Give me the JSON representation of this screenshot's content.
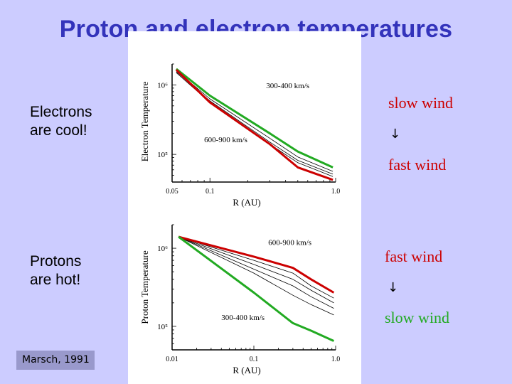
{
  "slide": {
    "title": "Proton and electron temperatures",
    "electrons_text": [
      "Electrons",
      "are cool!"
    ],
    "protons_text": [
      "Protons",
      "are hot!"
    ],
    "upper_right": {
      "top": "slow wind",
      "arrow": "↓",
      "bottom": "fast wind"
    },
    "lower_right": {
      "top": "fast wind",
      "arrow": "↓",
      "bottom": "slow wind"
    },
    "citation": "Marsch, 1991"
  },
  "colors": {
    "background": "#ccccff",
    "title": "#3333bb",
    "red": "#cc0000",
    "green": "#22aa22"
  },
  "chart_data": [
    {
      "type": "line",
      "title": "",
      "xlabel": "R (AU)",
      "ylabel": "Electron Temperature",
      "xscale": "log",
      "yscale": "log",
      "xlim": [
        0.05,
        1.0
      ],
      "ylim": [
        40000,
        2000000
      ],
      "xticks": [
        {
          "v": 0.05,
          "label": "0.05"
        },
        {
          "v": 0.1,
          "label": "0.1"
        },
        {
          "v": 1.0,
          "label": "1.0"
        }
      ],
      "yticks": [
        {
          "v": 1000000,
          "label": "10⁶"
        },
        {
          "v": 100000,
          "label": "10⁵"
        }
      ],
      "annotations": [
        {
          "text": "300-400 km/s",
          "x": 0.28,
          "y": 900000
        },
        {
          "text": "600-900 km/s",
          "x": 0.09,
          "y": 150000
        }
      ],
      "series": [
        {
          "name": "300-400 km/s",
          "color": "#22aa22",
          "width": 3,
          "x": [
            0.054,
            0.1,
            0.3,
            0.5,
            0.95
          ],
          "y": [
            1700000,
            700000,
            200000,
            110000,
            65000
          ]
        },
        {
          "name": "intermediate 1",
          "color": "#000000",
          "width": 0.8,
          "x": [
            0.054,
            0.1,
            0.3,
            0.5,
            0.95
          ],
          "y": [
            1600000,
            630000,
            170000,
            92000,
            57000
          ]
        },
        {
          "name": "intermediate 2",
          "color": "#000000",
          "width": 0.8,
          "x": [
            0.054,
            0.1,
            0.3,
            0.5,
            0.95
          ],
          "y": [
            1550000,
            590000,
            150000,
            82000,
            52000
          ]
        },
        {
          "name": "intermediate 3",
          "color": "#000000",
          "width": 0.8,
          "x": [
            0.054,
            0.1,
            0.3,
            0.5,
            0.95
          ],
          "y": [
            1500000,
            560000,
            140000,
            76000,
            48000
          ]
        },
        {
          "name": "600-900 km/s",
          "color": "#cc0000",
          "width": 3,
          "x": [
            0.054,
            0.1,
            0.3,
            0.5,
            0.95
          ],
          "y": [
            1650000,
            560000,
            140000,
            65000,
            43000
          ]
        }
      ]
    },
    {
      "type": "line",
      "title": "",
      "xlabel": "R (AU)",
      "ylabel": "Proton Temperature",
      "xscale": "log",
      "yscale": "log",
      "xlim": [
        0.01,
        1.0
      ],
      "ylim": [
        50000,
        2000000
      ],
      "xticks": [
        {
          "v": 0.01,
          "label": "0.01"
        },
        {
          "v": 0.1,
          "label": "0.1"
        },
        {
          "v": 1.0,
          "label": "1.0"
        }
      ],
      "yticks": [
        {
          "v": 1000000,
          "label": "10⁶"
        },
        {
          "v": 100000,
          "label": "10⁵"
        }
      ],
      "annotations": [
        {
          "text": "600-900 km/s",
          "x": 0.15,
          "y": 1100000
        },
        {
          "text": "300-400 km/s",
          "x": 0.04,
          "y": 120000
        }
      ],
      "series": [
        {
          "name": "600-900 km/s",
          "color": "#cc0000",
          "width": 3,
          "x": [
            0.012,
            0.1,
            0.3,
            0.5,
            0.95
          ],
          "y": [
            1400000,
            780000,
            560000,
            400000,
            270000
          ]
        },
        {
          "name": "intermediate 1",
          "color": "#000000",
          "width": 0.8,
          "x": [
            0.012,
            0.1,
            0.3,
            0.5,
            0.95
          ],
          "y": [
            1400000,
            700000,
            480000,
            330000,
            230000
          ]
        },
        {
          "name": "intermediate 2",
          "color": "#000000",
          "width": 0.8,
          "x": [
            0.012,
            0.1,
            0.3,
            0.5,
            0.95
          ],
          "y": [
            1400000,
            620000,
            400000,
            290000,
            200000
          ]
        },
        {
          "name": "intermediate 3",
          "color": "#000000",
          "width": 0.8,
          "x": [
            0.012,
            0.1,
            0.3,
            0.5,
            0.95
          ],
          "y": [
            1400000,
            540000,
            330000,
            240000,
            170000
          ]
        },
        {
          "name": "intermediate 4",
          "color": "#000000",
          "width": 0.8,
          "x": [
            0.012,
            0.1,
            0.3,
            0.5,
            0.95
          ],
          "y": [
            1400000,
            480000,
            250000,
            190000,
            140000
          ]
        },
        {
          "name": "300-400 km/s",
          "color": "#22aa22",
          "width": 3,
          "x": [
            0.012,
            0.1,
            0.3,
            0.5,
            0.95
          ],
          "y": [
            1400000,
            270000,
            110000,
            88000,
            65000
          ]
        }
      ]
    }
  ]
}
